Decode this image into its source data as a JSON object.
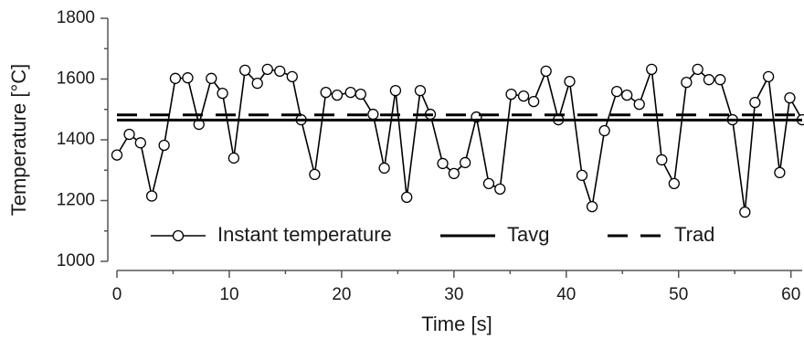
{
  "chart_data": {
    "type": "line",
    "xlabel": "Time [s]",
    "ylabel": "Temperature [°C]",
    "xlim": [
      0,
      61
    ],
    "ylim": [
      1000,
      1800
    ],
    "xticks": [
      0,
      10,
      20,
      30,
      40,
      50,
      60
    ],
    "xticks_minor": [
      5,
      15,
      25,
      35,
      45,
      55
    ],
    "yticks": [
      1000,
      1200,
      1400,
      1600,
      1800
    ],
    "yticks_minor": [
      1100,
      1300,
      1500,
      1700
    ],
    "legend": "bottom",
    "series": [
      {
        "name": "Instant temperature",
        "color": "#000000",
        "style": "markers",
        "x": [
          0,
          1.1,
          2.1,
          3.1,
          4.2,
          5.2,
          6.3,
          7.3,
          8.4,
          9.4,
          10.4,
          11.4,
          12.5,
          13.4,
          14.5,
          15.6,
          16.4,
          17.6,
          18.6,
          19.6,
          20.8,
          21.7,
          22.8,
          23.8,
          24.8,
          25.8,
          27.0,
          27.9,
          29.0,
          30.0,
          31.0,
          32.0,
          33.1,
          34.1,
          35.1,
          36.2,
          37.1,
          38.2,
          39.3,
          40.3,
          41.4,
          42.3,
          43.4,
          44.5,
          45.4,
          46.5,
          47.6,
          48.5,
          49.6,
          50.7,
          51.7,
          52.7,
          53.7,
          54.8,
          55.9,
          56.8,
          58.0,
          59.0,
          59.9,
          61.0
        ],
        "values": [
          1350,
          1418,
          1390,
          1215,
          1382,
          1602,
          1604,
          1451,
          1602,
          1553,
          1340,
          1629,
          1586,
          1632,
          1626,
          1608,
          1466,
          1286,
          1556,
          1547,
          1556,
          1550,
          1484,
          1307,
          1562,
          1211,
          1562,
          1484,
          1322,
          1289,
          1325,
          1475,
          1256,
          1238,
          1550,
          1544,
          1526,
          1626,
          1466,
          1592,
          1283,
          1180,
          1430,
          1559,
          1547,
          1517,
          1632,
          1334,
          1256,
          1589,
          1632,
          1598,
          1598,
          1466,
          1162,
          1523,
          1608,
          1292,
          1538,
          1466
        ]
      },
      {
        "name": "Tavg",
        "color": "#000000",
        "style": "solid",
        "value": 1465
      },
      {
        "name": "Trad",
        "color": "#000000",
        "style": "dashed",
        "value": 1482
      }
    ]
  }
}
